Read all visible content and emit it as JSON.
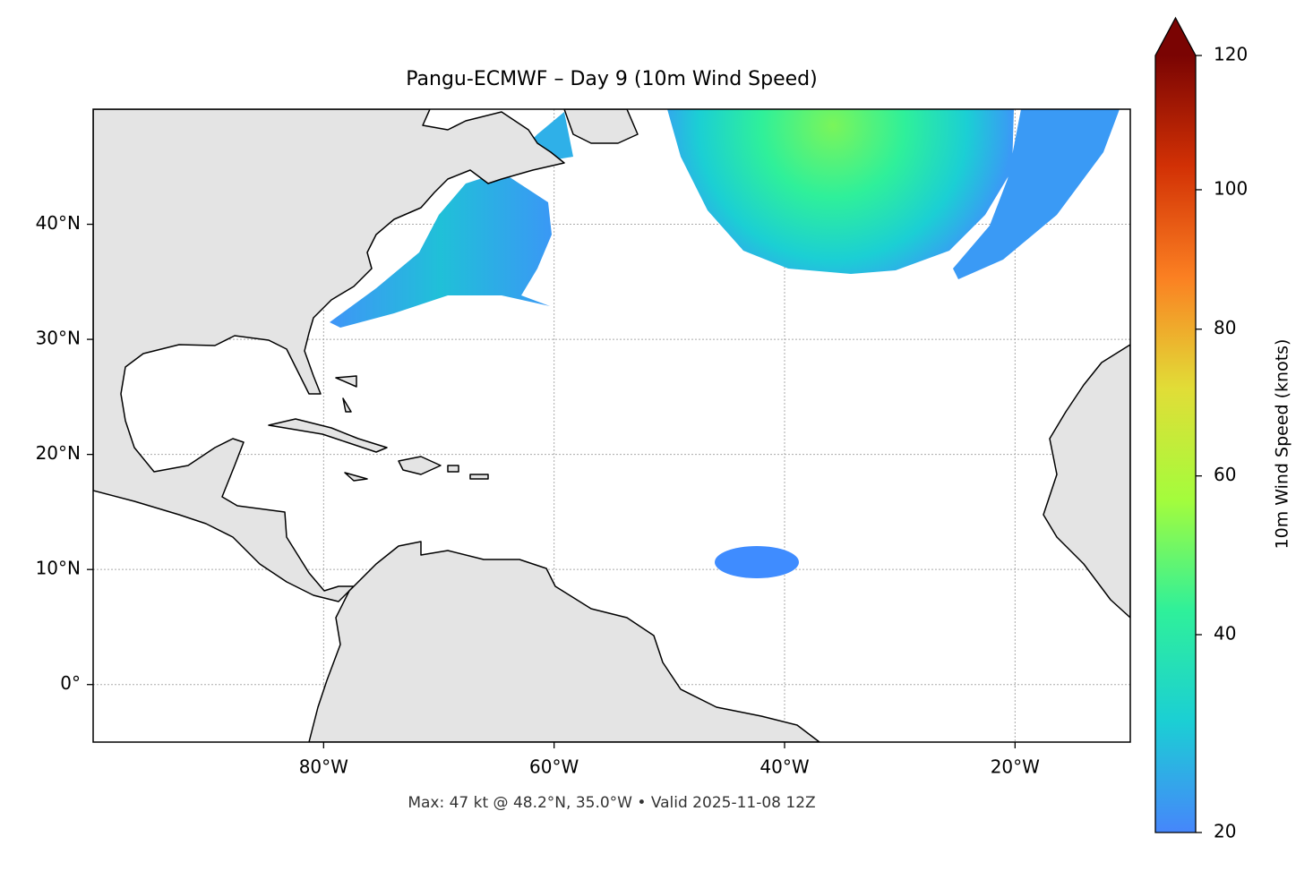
{
  "chart_data": {
    "type": "map",
    "title": "Pangu-ECMWF – Day 9 (10m Wind Speed)",
    "footnote": "Max: 47 kt @ 48.2°N, 35.0°W • Valid 2025-11-08 12Z",
    "xlim": [
      -100,
      -10
    ],
    "ylim": [
      -5,
      50
    ],
    "xticks": [
      {
        "value": -80,
        "label": "80°W"
      },
      {
        "value": -60,
        "label": "60°W"
      },
      {
        "value": -40,
        "label": "40°W"
      },
      {
        "value": -20,
        "label": "20°W"
      }
    ],
    "yticks": [
      {
        "value": 0,
        "label": "0°"
      },
      {
        "value": 10,
        "label": "10°N"
      },
      {
        "value": 20,
        "label": "20°N"
      },
      {
        "value": 30,
        "label": "30°N"
      },
      {
        "value": 40,
        "label": "40°N"
      }
    ],
    "grid": true,
    "colorbar": {
      "label": "10m Wind Speed (knots)",
      "lim": [
        20,
        120
      ],
      "ticks": [
        20,
        40,
        60,
        80,
        100,
        120
      ],
      "scale": "power",
      "gamma": 0.85,
      "extend": "max",
      "colors": [
        "#4686fb",
        "#1bcfd4",
        "#2ff09a",
        "#a4fc3c",
        "#e1dd37",
        "#fb8022",
        "#d23105",
        "#7a0403"
      ]
    }
  }
}
